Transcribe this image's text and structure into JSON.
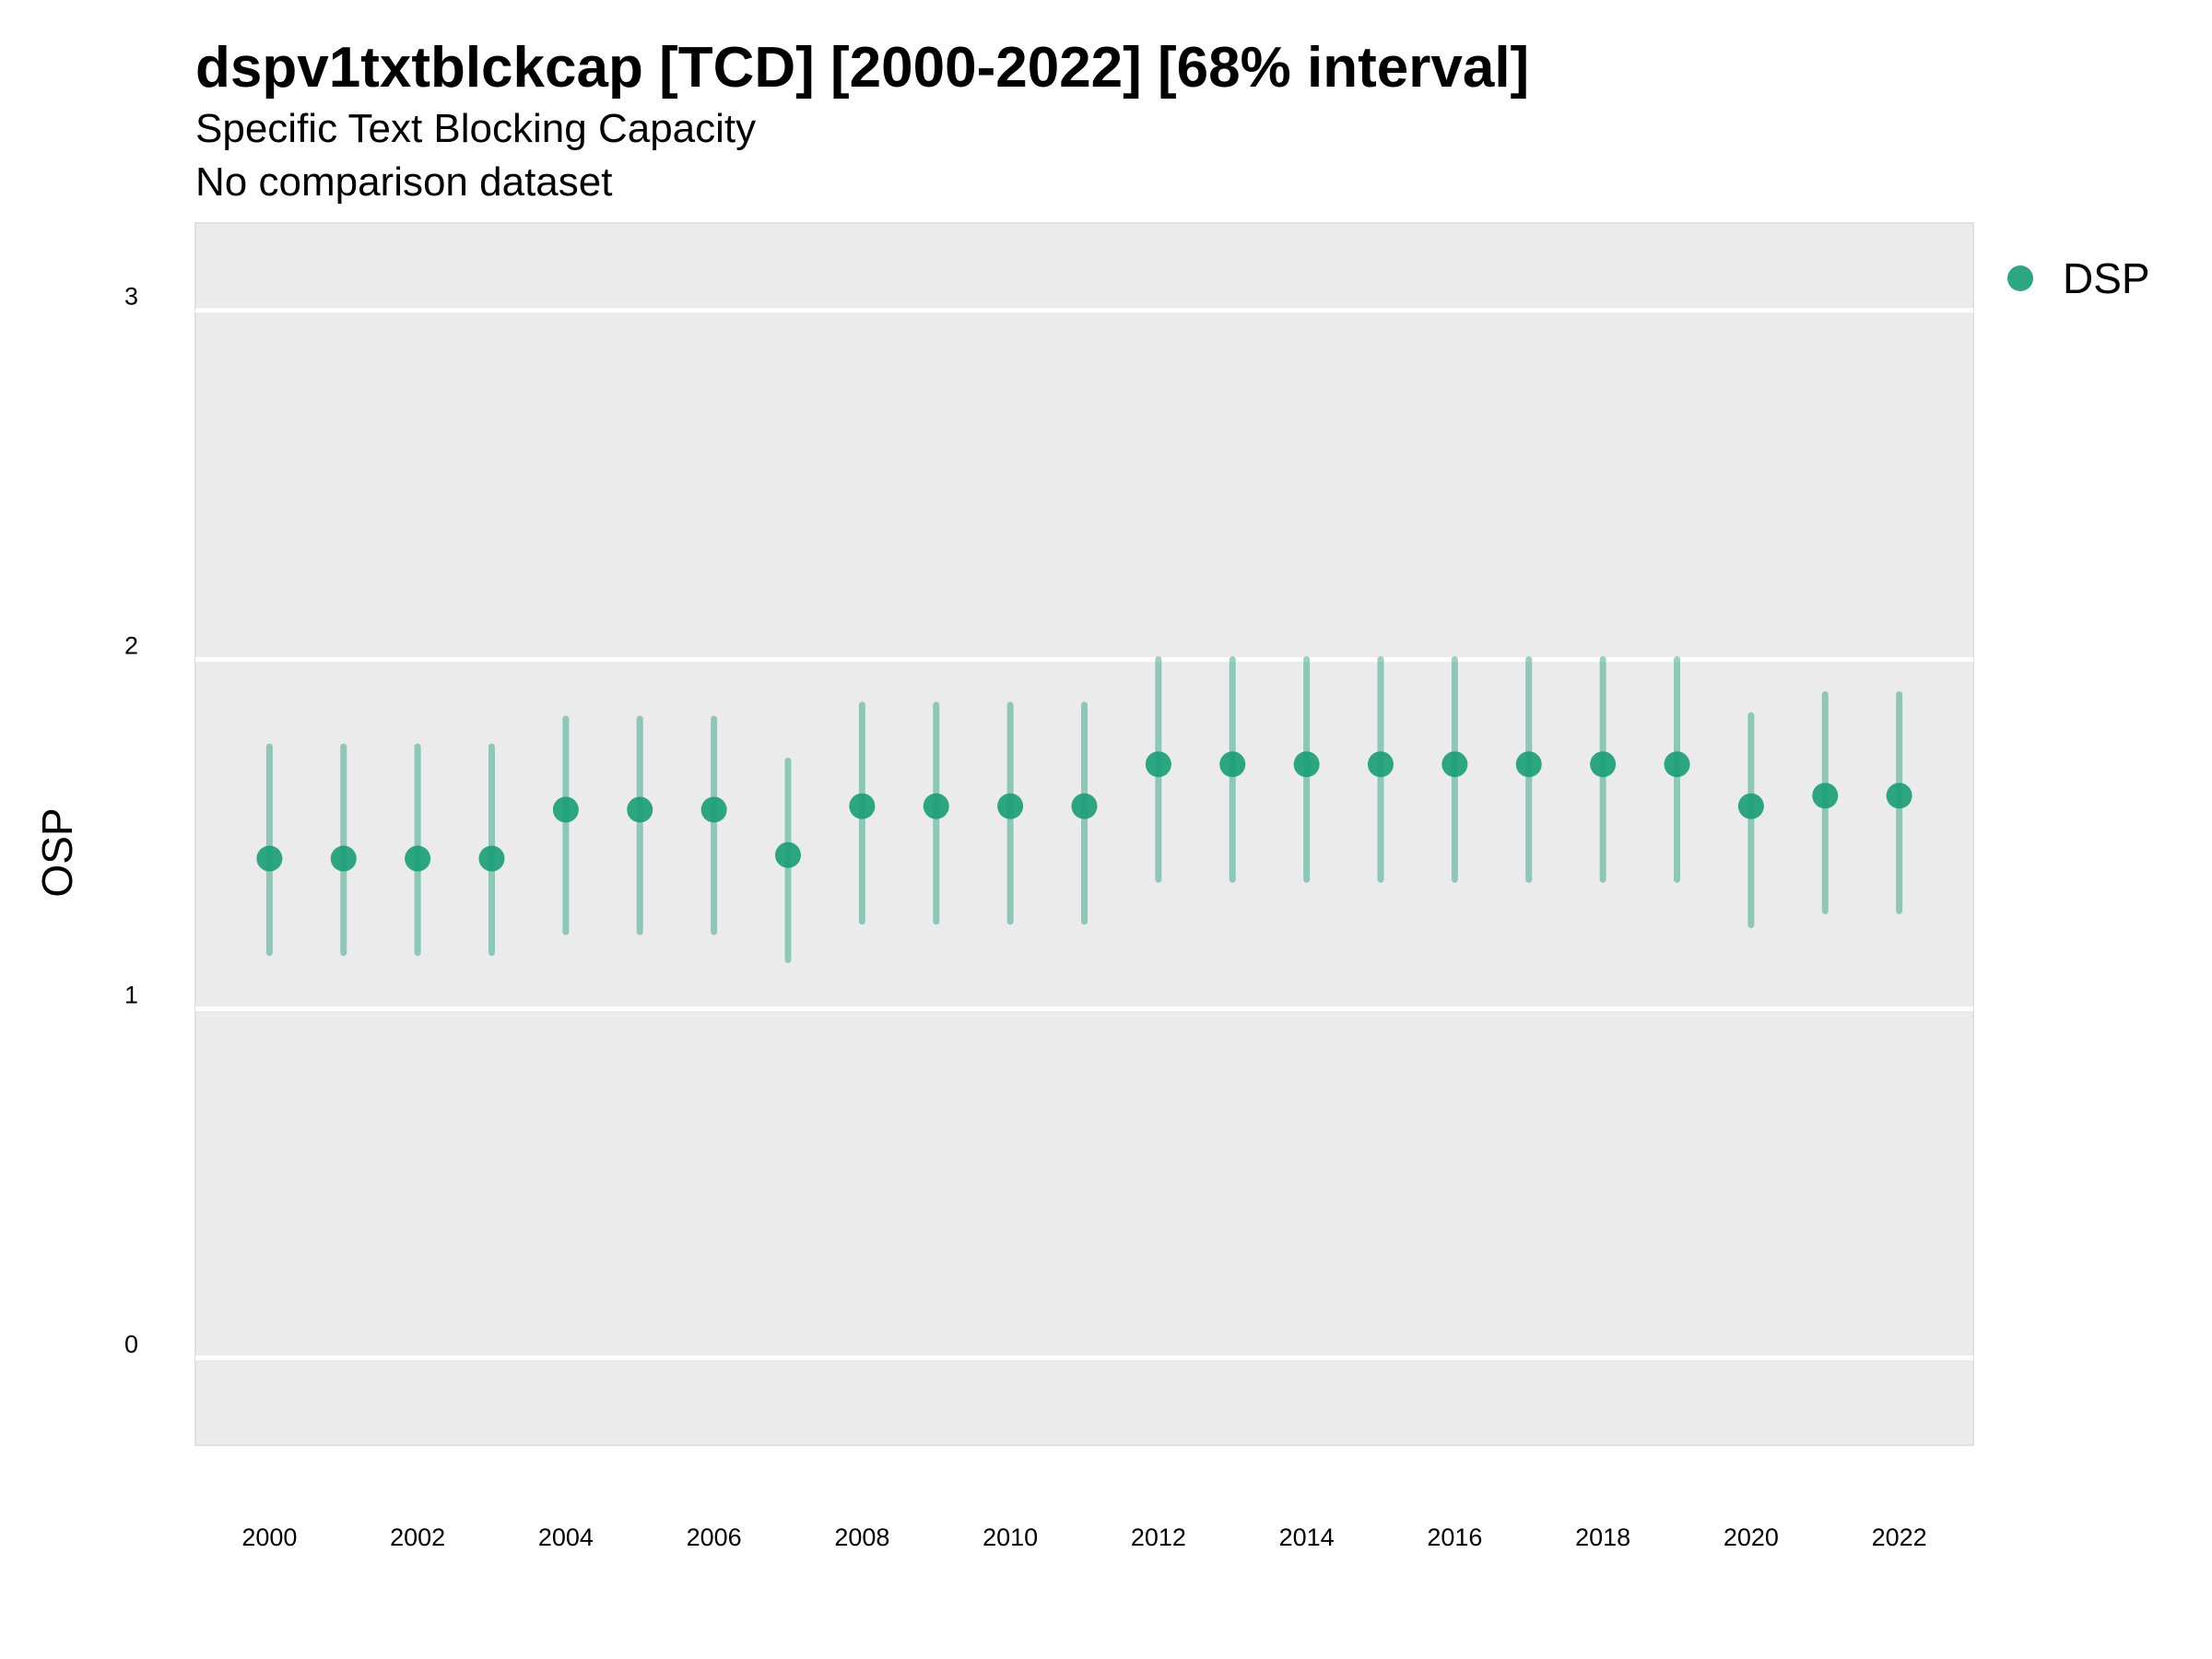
{
  "chart_data": {
    "type": "scatter",
    "title": "dspv1txtblckcap [TCD] [2000-2022] [68% interval]",
    "subtitle": "Specific Text Blocking Capacity",
    "caption": "No comparison dataset",
    "ylabel": "OSP",
    "xlabel": "",
    "xlim": [
      1999,
      2023
    ],
    "ylim": [
      -0.25,
      3.25
    ],
    "x_ticks": [
      "2000",
      "2002",
      "2004",
      "2006",
      "2008",
      "2010",
      "2012",
      "2014",
      "2016",
      "2018",
      "2020",
      "2022"
    ],
    "y_ticks": [
      "0",
      "1",
      "2",
      "3"
    ],
    "grid": true,
    "legend_position": "top-right",
    "series": [
      {
        "name": "DSP",
        "color": "#1B9E77",
        "x": [
          2000,
          2001,
          2002,
          2003,
          2004,
          2005,
          2006,
          2007,
          2008,
          2009,
          2010,
          2011,
          2012,
          2013,
          2014,
          2015,
          2016,
          2017,
          2018,
          2019,
          2020,
          2021,
          2022
        ],
        "values": [
          1.43,
          1.43,
          1.43,
          1.43,
          1.57,
          1.57,
          1.57,
          1.44,
          1.58,
          1.58,
          1.58,
          1.58,
          1.7,
          1.7,
          1.7,
          1.7,
          1.7,
          1.7,
          1.7,
          1.7,
          1.58,
          1.61,
          1.61
        ],
        "lower": [
          1.16,
          1.16,
          1.16,
          1.16,
          1.22,
          1.22,
          1.22,
          1.14,
          1.25,
          1.25,
          1.25,
          1.25,
          1.37,
          1.37,
          1.37,
          1.37,
          1.37,
          1.37,
          1.37,
          1.37,
          1.24,
          1.28,
          1.28
        ],
        "upper": [
          1.75,
          1.75,
          1.75,
          1.75,
          1.83,
          1.83,
          1.83,
          1.71,
          1.87,
          1.87,
          1.87,
          1.87,
          2.0,
          2.0,
          2.0,
          2.0,
          2.0,
          2.0,
          2.0,
          2.0,
          1.84,
          1.9,
          1.9
        ]
      }
    ]
  }
}
